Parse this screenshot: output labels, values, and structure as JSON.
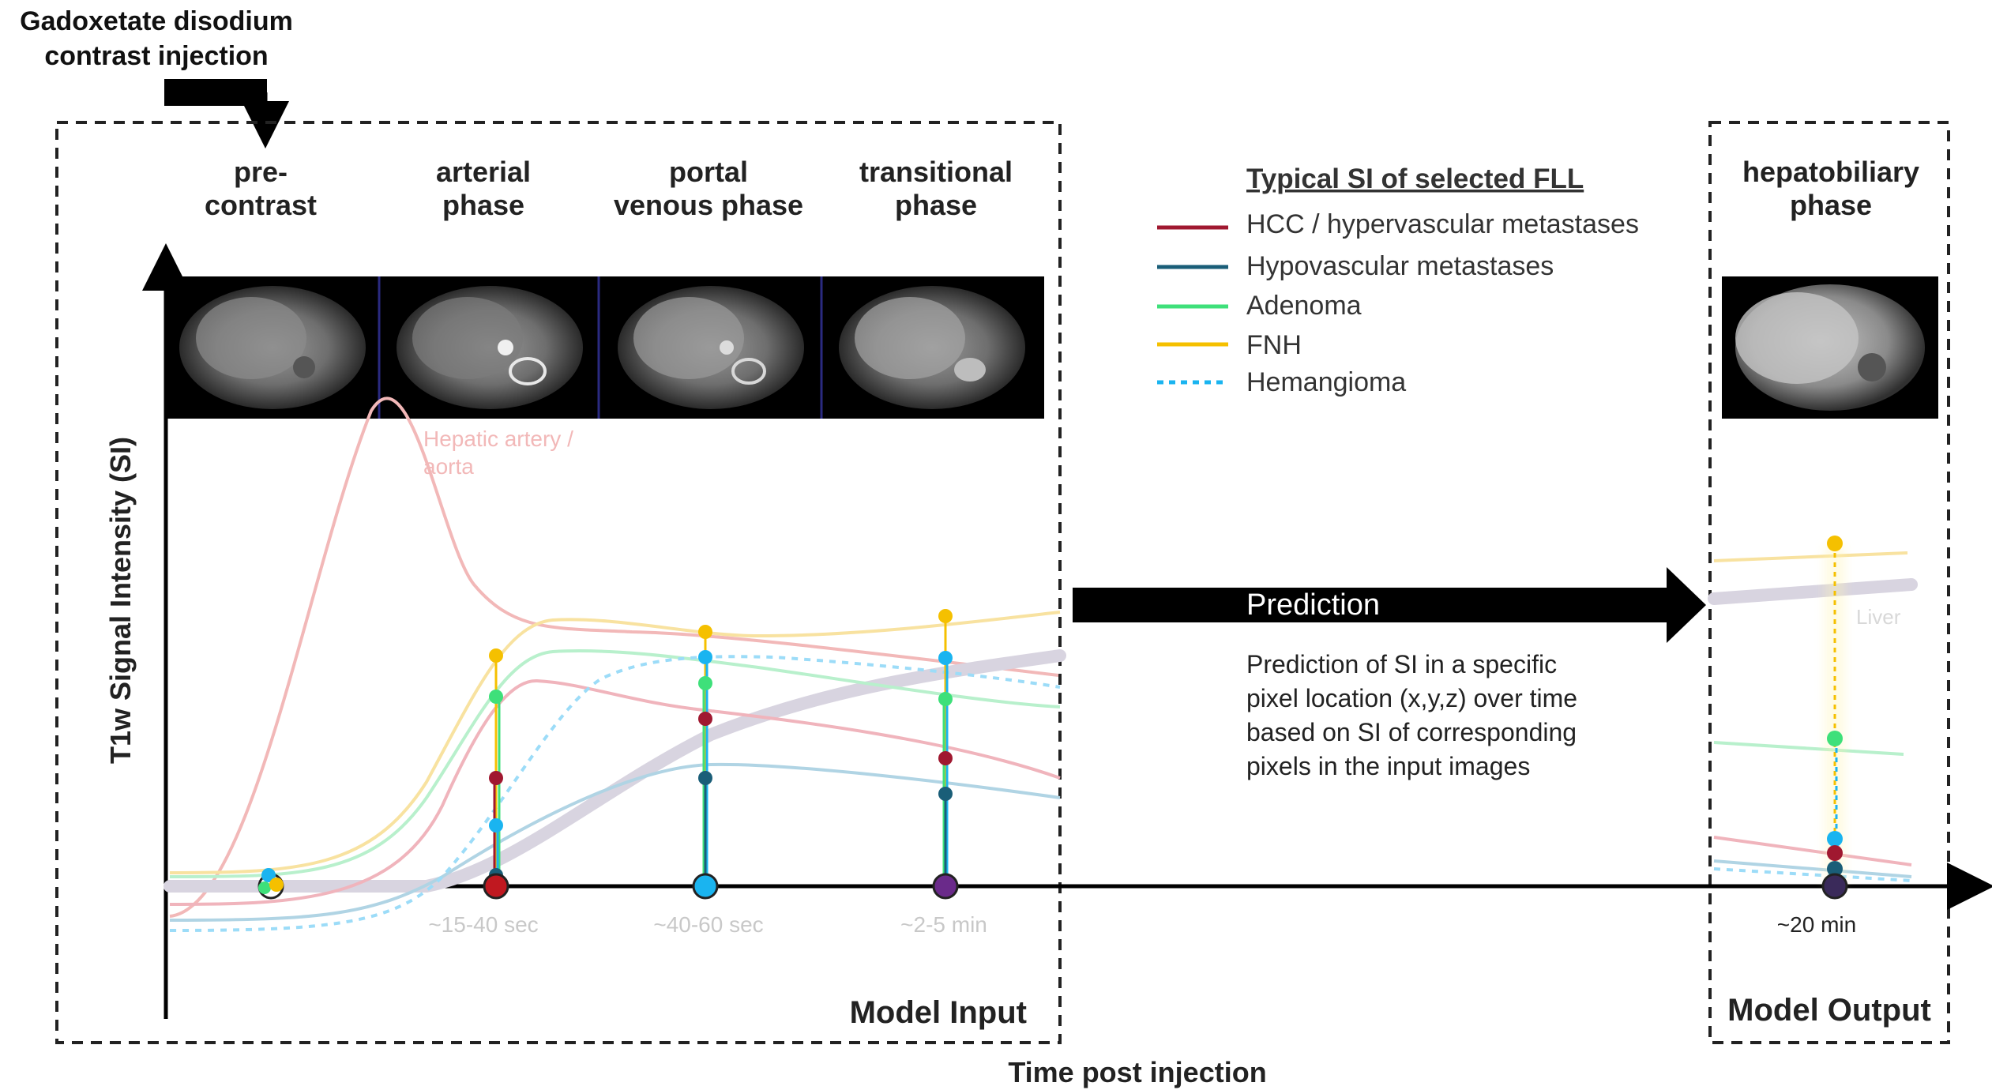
{
  "injection": {
    "line1": "Gadoxetate disodium",
    "line2": "contrast injection"
  },
  "phases": [
    {
      "id": "pre",
      "line1": "pre-",
      "line2": "contrast",
      "time": ""
    },
    {
      "id": "arterial",
      "line1": "arterial",
      "line2": "phase",
      "time": "~15-40 sec"
    },
    {
      "id": "portal",
      "line1": "portal",
      "line2": "venous phase",
      "time": "~40-60 sec"
    },
    {
      "id": "transitional",
      "line1": "transitional",
      "line2": "phase",
      "time": "~2-5 min"
    }
  ],
  "output_phase": {
    "line1": "hepatobiliary",
    "line2": "phase",
    "time": "~20 min"
  },
  "axes": {
    "y_label": "T1w Signal Intensity (SI)",
    "x_label": "Time post injection"
  },
  "curve_labels": {
    "aorta_line1": "Hepatic artery /",
    "aorta_line2": "aorta",
    "liver": "Liver"
  },
  "boxes": {
    "input": "Model Input",
    "output": "Model Output"
  },
  "prediction": {
    "title": "Prediction",
    "desc": [
      "Prediction of SI in a specific",
      "pixel location (x,y,z) over time",
      "based on SI of corresponding",
      "pixels in the input images"
    ]
  },
  "legend": {
    "title": "Typical SI of selected FLL",
    "items": [
      {
        "label": "HCC / hypervascular metastases",
        "color": "#a01830",
        "style": "solid"
      },
      {
        "label": "Hypovascular metastases",
        "color": "#1a5e78",
        "style": "solid"
      },
      {
        "label": "Adenoma",
        "color": "#3ee07a",
        "style": "solid"
      },
      {
        "label": "FNH",
        "color": "#f5c000",
        "style": "solid"
      },
      {
        "label": "Hemangioma",
        "color": "#1ab4f0",
        "style": "dotted"
      }
    ]
  },
  "colors": {
    "hcc": "#a01830",
    "hypo": "#1a5e78",
    "adenoma": "#3ee07a",
    "fnh": "#f5c000",
    "hemangioma": "#1ab4f0",
    "aorta": "#f2b8b8",
    "liver": "#d8d4e0",
    "phase_dot": "#6a2a8a"
  }
}
